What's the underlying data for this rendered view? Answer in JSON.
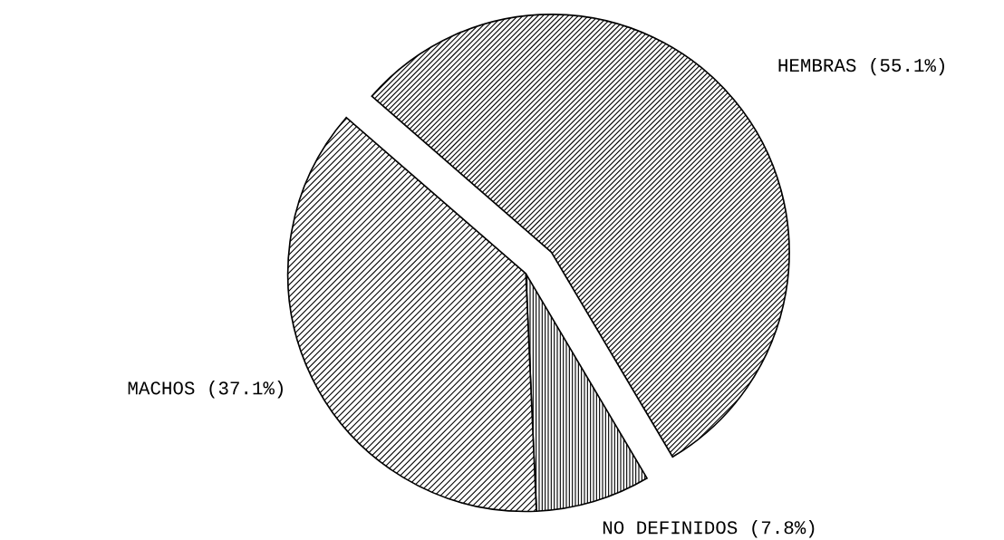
{
  "chart_data": {
    "type": "pie",
    "categories": [
      "HEMBRAS",
      "NO DEFINIDOS",
      "MACHOS"
    ],
    "values": [
      55.1,
      7.8,
      37.1
    ],
    "value_labels": [
      "(55.1%)",
      "(7.8%)",
      "(37.1%)"
    ],
    "colors": [
      "#000000",
      "#000000",
      "#000000"
    ]
  }
}
